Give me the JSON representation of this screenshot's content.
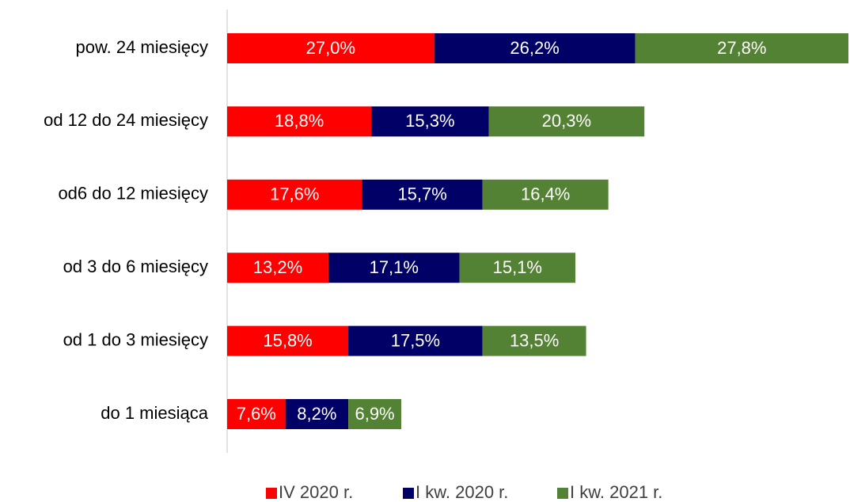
{
  "chart_data": {
    "type": "stacked-bar-horizontal",
    "categories": [
      "pow. 24 miesięcy",
      "od 12 do 24 miesięcy",
      "od6 do 12 miesięcy",
      "od 3 do 6 miesięcy",
      "od 1 do 3 miesięcy",
      "do 1 miesiąca"
    ],
    "series": [
      {
        "name": "IV 2020 r.",
        "color": "#ff0000",
        "values": [
          27.0,
          18.8,
          17.6,
          13.2,
          15.8,
          7.6
        ],
        "value_labels": [
          "27,0%",
          "18,8%",
          "17,6%",
          "13,2%",
          "15,8%",
          "7,6%"
        ]
      },
      {
        "name": "I kw. 2020 r.",
        "color": "#000066",
        "values": [
          26.2,
          15.3,
          15.7,
          17.1,
          17.5,
          8.2
        ],
        "value_labels": [
          "26,2%",
          "15,3%",
          "15,7%",
          "17,1%",
          "17,5%",
          "8,2%"
        ]
      },
      {
        "name": "I kw. 2021 r.",
        "color": "#548235",
        "values": [
          27.8,
          20.3,
          16.4,
          15.1,
          13.5,
          6.9
        ],
        "value_labels": [
          "27,8%",
          "20,3%",
          "16,4%",
          "15,1%",
          "13,5%",
          "6,9%"
        ]
      }
    ],
    "legend": "bottom"
  }
}
